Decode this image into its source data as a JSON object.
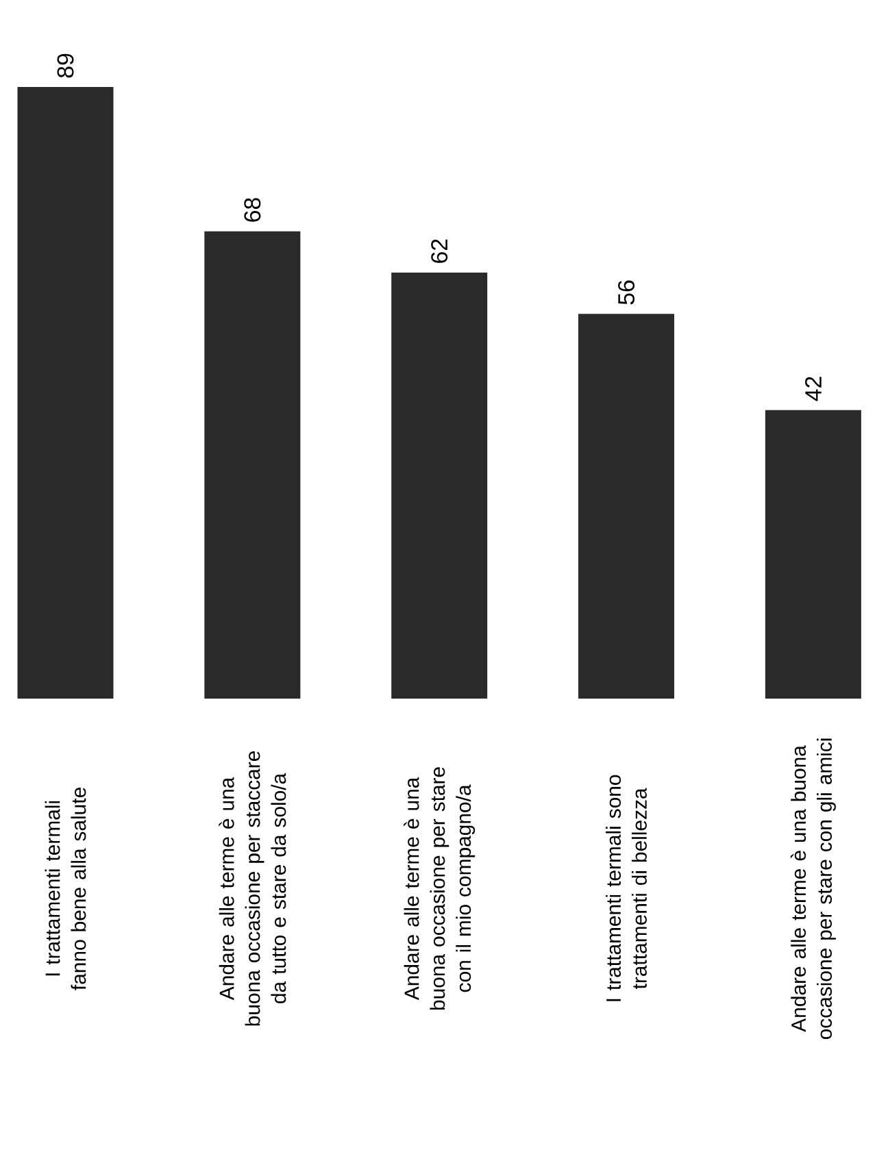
{
  "chart_data": {
    "type": "bar",
    "categories": [
      "I trattamenti termali fanno bene alla salute",
      "Andare alle terme è una buona occasione per staccare da tutto e stare da solo/a",
      "Andare alle terme è una buona occasione per stare con il mio compagno/a",
      "I trattamenti termali sono trattamenti di bellezza",
      "Andare alle terme è una buona occasione per stare con gli amici"
    ],
    "values": [
      89,
      68,
      62,
      56,
      42
    ],
    "color": "#2a2a2a",
    "data_labels": true
  }
}
